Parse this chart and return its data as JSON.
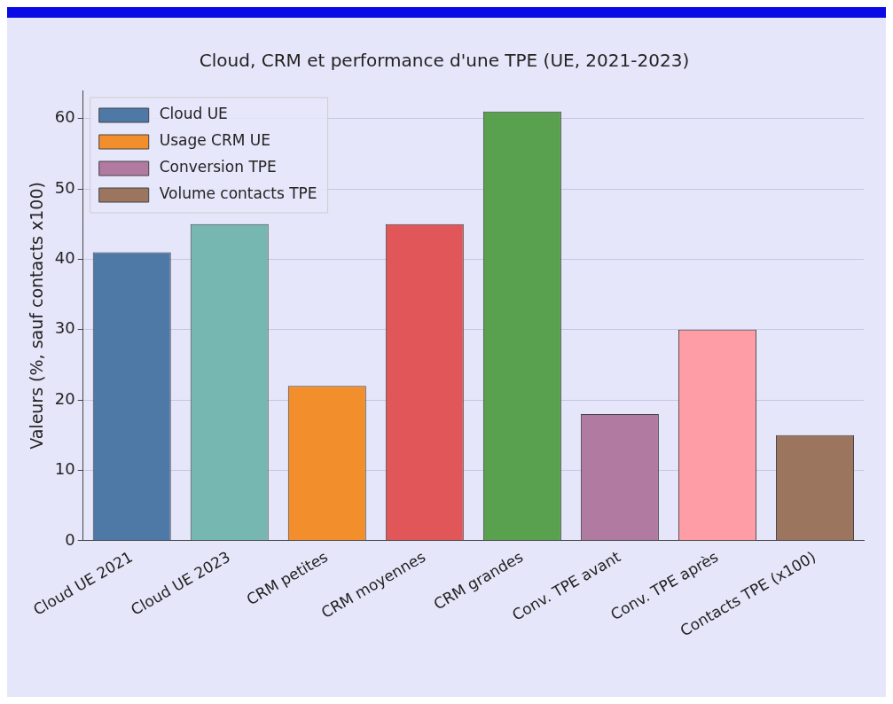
{
  "chart_data": {
    "type": "bar",
    "title": "Cloud, CRM et performance d'une TPE (UE, 2021-2023)",
    "ylabel": "Valeurs (%, sauf contacts x100)",
    "categories": [
      "Cloud UE 2021",
      "Cloud UE 2023",
      "CRM petites",
      "CRM moyennes",
      "CRM grandes",
      "Conv. TPE avant",
      "Conv. TPE après",
      "Contacts TPE (x100)"
    ],
    "series": [
      {
        "name": "Cloud UE",
        "color": "#4e79a7",
        "colors": [
          "#4e79a7",
          "#76b7b2",
          null,
          null,
          null,
          null,
          null,
          null
        ],
        "values": [
          41,
          45,
          null,
          null,
          null,
          null,
          null,
          null
        ]
      },
      {
        "name": "Usage CRM UE",
        "color": "#f28e2b",
        "colors": [
          null,
          null,
          "#f28e2b",
          "#e15759",
          "#59a14f",
          null,
          null,
          null
        ],
        "values": [
          null,
          null,
          22,
          45,
          61,
          null,
          null,
          null
        ]
      },
      {
        "name": "Conversion TPE",
        "color": "#b07aa1",
        "colors": [
          null,
          null,
          null,
          null,
          null,
          "#b07aa1",
          "#ff9da7",
          null
        ],
        "values": [
          null,
          null,
          null,
          null,
          null,
          18,
          30,
          null
        ]
      },
      {
        "name": "Volume contacts TPE",
        "color": "#9c755f",
        "colors": [
          null,
          null,
          null,
          null,
          null,
          null,
          null,
          "#9c755f"
        ],
        "values": [
          null,
          null,
          null,
          null,
          null,
          null,
          null,
          15
        ]
      }
    ],
    "ylim": [
      0,
      64
    ],
    "yticks": [
      0,
      10,
      20,
      30,
      40,
      50,
      60
    ],
    "grid": "y",
    "legend": "top left"
  }
}
